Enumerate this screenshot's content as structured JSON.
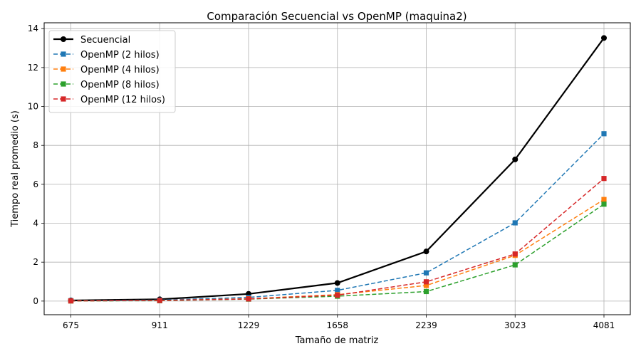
{
  "chart_data": {
    "type": "line",
    "title": "Comparación Secuencial vs OpenMP (maquina2)",
    "xlabel": "Tamaño de matriz",
    "ylabel": "Tiempo real promedio (s)",
    "categories": [
      "675",
      "911",
      "1229",
      "1658",
      "2239",
      "3023",
      "4081"
    ],
    "ylim": [
      -0.7,
      14.3
    ],
    "yticks": [
      0,
      2,
      4,
      6,
      8,
      10,
      12,
      14
    ],
    "grid": true,
    "legend_position": "top-left",
    "series": [
      {
        "name": "Secuencial",
        "color": "#000000",
        "dashed": false,
        "marker": "circle",
        "values": [
          0.03,
          0.09,
          0.37,
          0.93,
          2.55,
          7.28,
          13.52
        ]
      },
      {
        "name": "OpenMP (2 hilos)",
        "color": "#1f77b4",
        "dashed": true,
        "marker": "square",
        "values": [
          0.02,
          0.05,
          0.19,
          0.55,
          1.45,
          4.02,
          8.6
        ]
      },
      {
        "name": "OpenMP (4 hilos)",
        "color": "#ff7f0e",
        "dashed": true,
        "marker": "square",
        "values": [
          0.01,
          0.03,
          0.12,
          0.33,
          0.8,
          2.35,
          5.22
        ]
      },
      {
        "name": "OpenMP (8 hilos)",
        "color": "#2ca02c",
        "dashed": true,
        "marker": "square",
        "values": [
          0.01,
          0.02,
          0.1,
          0.25,
          0.49,
          1.86,
          4.98
        ]
      },
      {
        "name": "OpenMP (12 hilos)",
        "color": "#d62728",
        "dashed": true,
        "marker": "square",
        "values": [
          0.01,
          0.03,
          0.11,
          0.3,
          0.99,
          2.42,
          6.3
        ]
      }
    ]
  }
}
